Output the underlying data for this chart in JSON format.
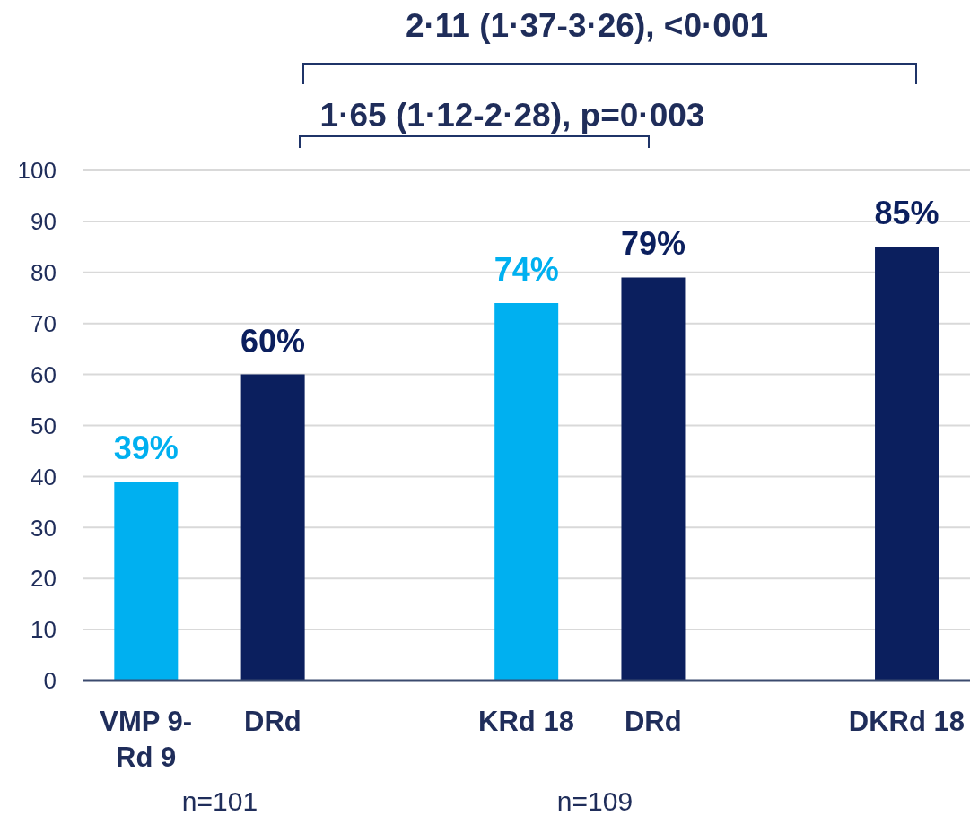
{
  "chart_data": {
    "type": "bar",
    "categories": [
      "VMP 9-Rd 9",
      "DRd",
      null,
      "KRd 18",
      "DRd",
      null,
      "DKRd 18"
    ],
    "values": [
      39,
      60,
      null,
      74,
      79,
      null,
      85
    ],
    "colors": [
      "#00b0f0",
      "#0b1f5e",
      null,
      "#00b0f0",
      "#0b1f5e",
      null,
      "#0b1f5e"
    ],
    "value_labels": [
      "39%",
      "60%",
      null,
      "74%",
      "79%",
      null,
      "85%"
    ],
    "ylim": [
      0,
      100
    ],
    "yticks": [
      0,
      10,
      20,
      30,
      40,
      50,
      60,
      70,
      80,
      90,
      100
    ],
    "grid": "y",
    "annotations": [
      "2·11 (1·37-3·26), <0·001",
      "1·65 (1·12-2·28), p=0·003",
      "n=101",
      "n=109"
    ]
  }
}
